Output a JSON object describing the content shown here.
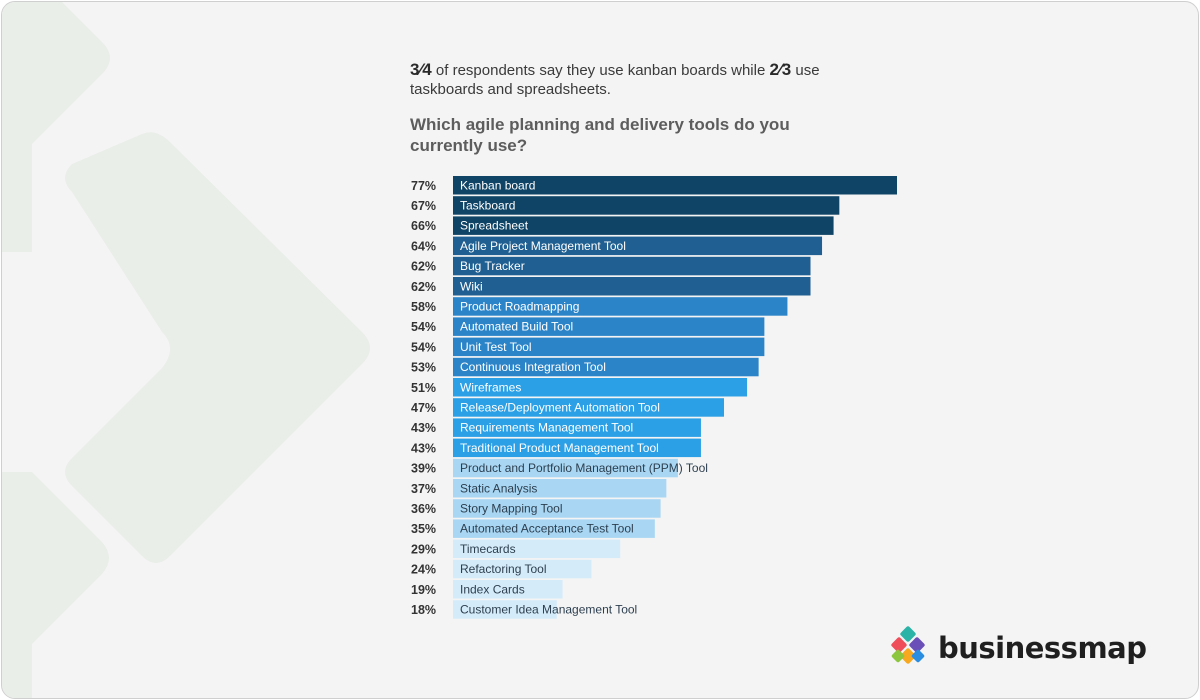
{
  "headline": {
    "frac1": "3⁄4",
    "part1": " of respondents say they use kanban boards while ",
    "frac2": "2⁄3",
    "part2": " use taskboards and spreadsheets."
  },
  "question": "Which agile planning and delivery tools do you currently use?",
  "logo": {
    "text": "businessmap"
  },
  "colors": {
    "background": "#f4f4f4",
    "tier1": "#0f4466",
    "tier2": "#1f5f91",
    "tier3": "#2b84c8",
    "tier4": "#2ba0e6",
    "tier5": "#a8d6f3",
    "tier6": "#d4ebfa"
  },
  "chart_data": {
    "type": "bar",
    "orientation": "horizontal",
    "value_format": "percent",
    "categories": [
      "Kanban board",
      "Taskboard",
      "Spreadsheet",
      "Agile Project Management Tool",
      "Bug Tracker",
      "Wiki",
      "Product Roadmapping",
      "Automated Build Tool",
      "Unit Test Tool",
      "Continuous Integration Tool",
      "Wireframes",
      "Release/Deployment Automation Tool",
      "Requirements Management Tool",
      "Traditional Product Management Tool",
      "Product and Portfolio Management (PPM) Tool",
      "Static Analysis",
      "Story Mapping Tool",
      "Automated Acceptance Test Tool",
      "Timecards",
      "Refactoring Tool",
      "Index Cards",
      "Customer Idea Management Tool"
    ],
    "values": [
      77,
      67,
      66,
      64,
      62,
      62,
      58,
      54,
      54,
      53,
      51,
      47,
      43,
      43,
      39,
      37,
      36,
      35,
      29,
      24,
      19,
      18
    ],
    "labels": [
      "77%",
      "67%",
      "66%",
      "64%",
      "62%",
      "62%",
      "58%",
      "54%",
      "54%",
      "53%",
      "51%",
      "47%",
      "43%",
      "43%",
      "39%",
      "37%",
      "36%",
      "35%",
      "29%",
      "24%",
      "19%",
      "18%"
    ],
    "xlim": [
      0,
      77
    ],
    "grid": false,
    "legend": "none"
  }
}
